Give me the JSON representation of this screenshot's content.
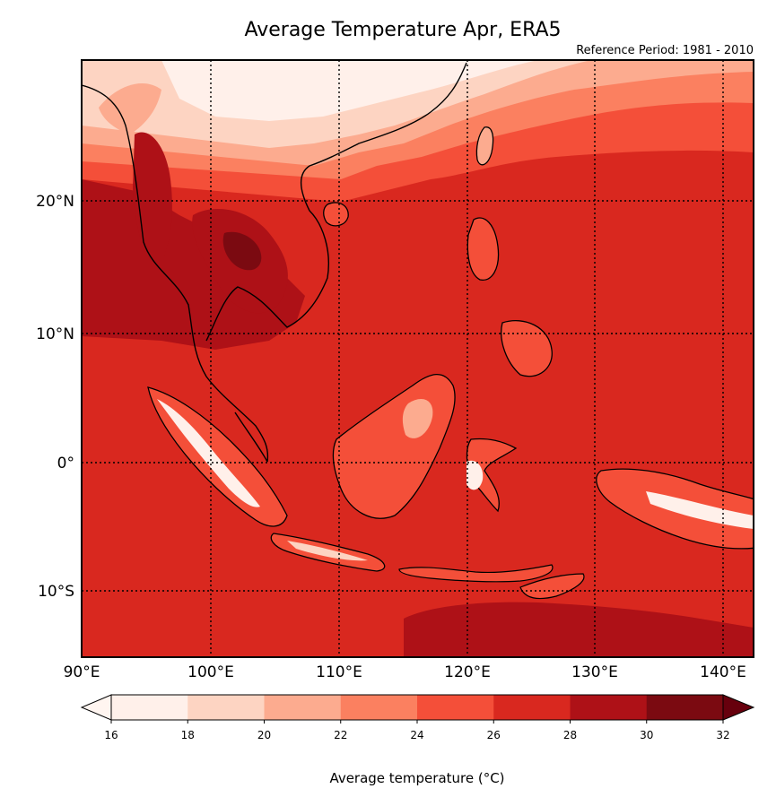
{
  "title": "Average Temperature Apr, ERA5",
  "subtitle": "Reference Period: 1981 - 2010",
  "map": {
    "lon_range": [
      90,
      142.5
    ],
    "lat_range": [
      -15,
      30.5
    ],
    "lon_ticks": [
      {
        "value": 90,
        "label": "90°E"
      },
      {
        "value": 100,
        "label": "100°E"
      },
      {
        "value": 110,
        "label": "110°E"
      },
      {
        "value": 120,
        "label": "120°E"
      },
      {
        "value": 130,
        "label": "130°E"
      },
      {
        "value": 140,
        "label": "140°E"
      }
    ],
    "lat_ticks": [
      {
        "value": 20,
        "label": "20°N"
      },
      {
        "value": 10,
        "label": "10°N"
      },
      {
        "value": 0,
        "label": "0°"
      },
      {
        "value": -10,
        "label": "10°S"
      }
    ],
    "grid": "dotted",
    "colormap": "Reds"
  },
  "colorbar": {
    "label": "Average temperature (°C)",
    "ticks": [
      "16",
      "18",
      "20",
      "22",
      "24",
      "26",
      "28",
      "30",
      "32"
    ],
    "bins": [
      "#fff0ea",
      "#fdd4c2",
      "#fcab8f",
      "#fb8060",
      "#f44f39",
      "#d9281f",
      "#ae1117",
      "#7b0a11"
    ],
    "under_color": "#fff5f0",
    "over_color": "#67000d",
    "extend": "both"
  }
}
